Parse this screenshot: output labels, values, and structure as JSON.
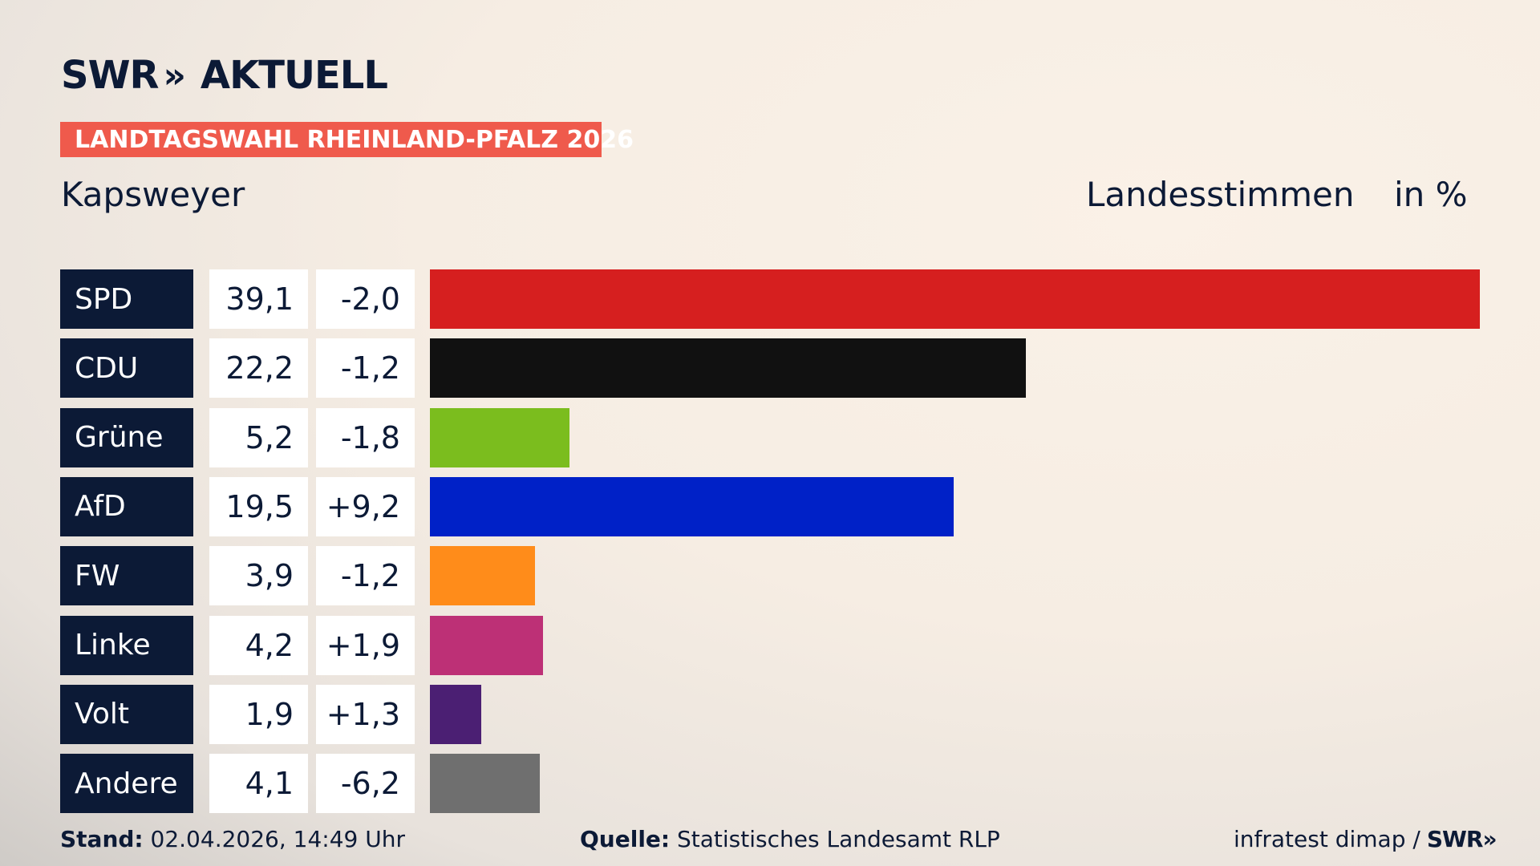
{
  "brand": {
    "name": "SWR",
    "chevrons": "»",
    "product": "AKTUELL"
  },
  "badge": "LANDTAGSWAHL RHEINLAND-PFALZ 2026",
  "place": "Kapsweyer",
  "vote_type": "Landesstimmen",
  "unit": "in %",
  "chart_data": {
    "type": "bar",
    "orientation": "horizontal",
    "categories": [
      "SPD",
      "CDU",
      "Grüne",
      "AfD",
      "FW",
      "Linke",
      "Volt",
      "Andere"
    ],
    "values": [
      39.1,
      22.2,
      5.2,
      19.5,
      3.9,
      4.2,
      1.9,
      4.1
    ],
    "value_labels": [
      "39,1",
      "22,2",
      "5,2",
      "19,5",
      "3,9",
      "4,2",
      "1,9",
      "4,1"
    ],
    "diff_labels": [
      "-2,0",
      "-1,2",
      "-1,8",
      "+9,2",
      "-1,2",
      "+1,9",
      "+1,3",
      "-6,2"
    ],
    "colors": [
      "#d61f1f",
      "#111111",
      "#7bbd1e",
      "#0021c7",
      "#ff8c1a",
      "#bd3076",
      "#4b1f73",
      "#6f6f6f"
    ],
    "xlim": [
      0,
      39.1
    ],
    "grid": false,
    "legend": "none"
  },
  "footer": {
    "stand_label": "Stand:",
    "stand_value": "02.04.2026, 14:49 Uhr",
    "source_label": "Quelle:",
    "source_value": "Statistisches Landesamt RLP",
    "credit": "infratest dimap /",
    "credit_brand": "SWR",
    "credit_chevrons": "»"
  }
}
